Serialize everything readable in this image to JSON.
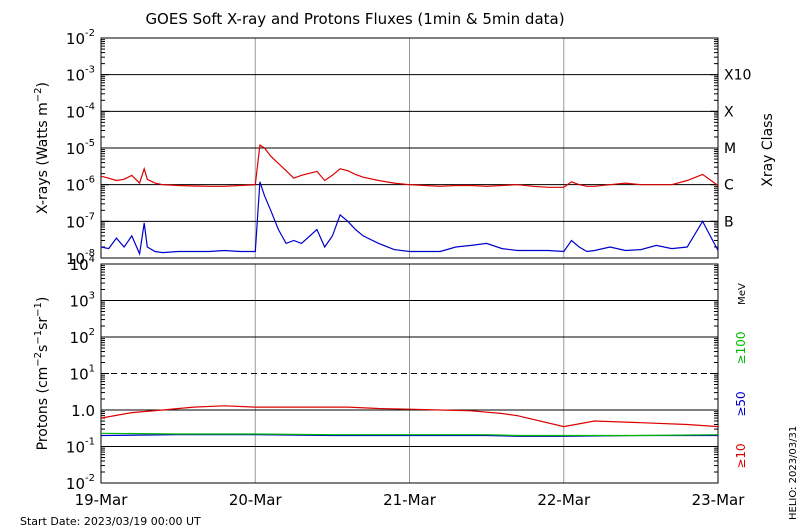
{
  "title": "GOES Soft X-ray and Protons Fluxes   (1min & 5min data)",
  "start_date_label": "Start Date: 2023/03/19 00:00 UT",
  "credit": "HELIO: 2023/03/31",
  "colors": {
    "red": "#dd0000",
    "blue": "#0000cc",
    "green": "#00bb00",
    "grid": "#000000",
    "day_line": "#999999"
  },
  "chart_data": [
    {
      "type": "line",
      "title": "GOES Soft X-ray and Protons Fluxes   (1min & 5min data)",
      "ylabel": "X-rays (Watts m^-2)",
      "y_scale": "log",
      "ylim": [
        1e-08,
        0.01
      ],
      "x": [
        "19-Mar",
        "20-Mar",
        "21-Mar",
        "22-Mar",
        "23-Mar"
      ],
      "y_ticks": [
        {
          "base": "10",
          "exp": "-8"
        },
        {
          "base": "10",
          "exp": "-7"
        },
        {
          "base": "10",
          "exp": "-6"
        },
        {
          "base": "10",
          "exp": "-5"
        },
        {
          "base": "10",
          "exp": "-4"
        },
        {
          "base": "10",
          "exp": "-3"
        },
        {
          "base": "10",
          "exp": "-2"
        }
      ],
      "right_axis_label": "Xray Class",
      "classes": [
        {
          "label": "B",
          "value": 1e-07
        },
        {
          "label": "C",
          "value": 1e-06
        },
        {
          "label": "M",
          "value": 1e-05
        },
        {
          "label": "X",
          "value": 0.0001
        },
        {
          "label": "X10",
          "value": 0.001
        }
      ],
      "series": [
        {
          "color": "red",
          "x": [
            19.0,
            19.05,
            19.1,
            19.15,
            19.2,
            19.25,
            19.28,
            19.3,
            19.35,
            19.4,
            19.5,
            19.6,
            19.7,
            19.8,
            19.9,
            20.0,
            20.03,
            20.06,
            20.1,
            20.15,
            20.2,
            20.25,
            20.3,
            20.4,
            20.45,
            20.5,
            20.55,
            20.6,
            20.65,
            20.7,
            20.8,
            20.9,
            21.0,
            21.1,
            21.2,
            21.3,
            21.4,
            21.5,
            21.6,
            21.7,
            21.8,
            21.9,
            22.0,
            22.05,
            22.1,
            22.15,
            22.2,
            22.3,
            22.4,
            22.5,
            22.6,
            22.7,
            22.8,
            22.9,
            23.0
          ],
          "y": [
            1.7e-06,
            1.5e-06,
            1.3e-06,
            1.4e-06,
            1.8e-06,
            1.1e-06,
            2.7e-06,
            1.4e-06,
            1.1e-06,
            1e-06,
            9.5e-07,
            9.2e-07,
            9e-07,
            9e-07,
            9.5e-07,
            1e-06,
            1.2e-05,
            1e-05,
            6e-06,
            3.8e-06,
            2.4e-06,
            1.5e-06,
            1.8e-06,
            2.3e-06,
            1.3e-06,
            1.8e-06,
            2.7e-06,
            2.4e-06,
            1.9e-06,
            1.6e-06,
            1.3e-06,
            1.1e-06,
            1e-06,
            9.5e-07,
            9e-07,
            9.5e-07,
            9.5e-07,
            9e-07,
            9.5e-07,
            1e-06,
            9e-07,
            8.5e-07,
            8.5e-07,
            1.2e-06,
            1e-06,
            9e-07,
            9e-07,
            1e-06,
            1.1e-06,
            1e-06,
            1e-06,
            1e-06,
            1.3e-06,
            1.9e-06,
            9.5e-07
          ]
        },
        {
          "color": "blue",
          "x": [
            19.0,
            19.05,
            19.1,
            19.15,
            19.2,
            19.25,
            19.28,
            19.3,
            19.35,
            19.4,
            19.5,
            19.6,
            19.7,
            19.8,
            19.9,
            20.0,
            20.03,
            20.06,
            20.1,
            20.15,
            20.2,
            20.25,
            20.3,
            20.4,
            20.45,
            20.5,
            20.55,
            20.6,
            20.65,
            20.7,
            20.8,
            20.9,
            21.0,
            21.1,
            21.2,
            21.3,
            21.4,
            21.5,
            21.6,
            21.7,
            21.8,
            21.9,
            22.0,
            22.05,
            22.1,
            22.15,
            22.2,
            22.3,
            22.4,
            22.5,
            22.6,
            22.7,
            22.8,
            22.9,
            23.0
          ],
          "y": [
            2e-08,
            1.8e-08,
            3.5e-08,
            2e-08,
            4e-08,
            1.3e-08,
            9e-08,
            2e-08,
            1.5e-08,
            1.4e-08,
            1.5e-08,
            1.5e-08,
            1.5e-08,
            1.6e-08,
            1.5e-08,
            1.5e-08,
            1.2e-06,
            5e-07,
            2e-07,
            6e-08,
            2.5e-08,
            3e-08,
            2.5e-08,
            6e-08,
            2e-08,
            4e-08,
            1.5e-07,
            1e-07,
            6e-08,
            4e-08,
            2.5e-08,
            1.7e-08,
            1.5e-08,
            1.5e-08,
            1.5e-08,
            2e-08,
            2.2e-08,
            2.5e-08,
            1.8e-08,
            1.6e-08,
            1.6e-08,
            1.6e-08,
            1.5e-08,
            3e-08,
            2e-08,
            1.5e-08,
            1.6e-08,
            2e-08,
            1.6e-08,
            1.7e-08,
            2.2e-08,
            1.8e-08,
            2e-08,
            1e-07,
            1.6e-08
          ]
        }
      ]
    },
    {
      "type": "line",
      "ylabel": "Protons (cm^-2 s^-1 sr^-1)",
      "y_scale": "log",
      "ylim": [
        0.01,
        10000.0
      ],
      "x": [
        "19-Mar",
        "20-Mar",
        "21-Mar",
        "22-Mar",
        "23-Mar"
      ],
      "y_ticks": [
        {
          "base": "10",
          "exp": "-2"
        },
        {
          "base": "10",
          "exp": "-1"
        },
        {
          "base": "1.0",
          "exp": ""
        },
        {
          "base": "10",
          "exp": "1"
        },
        {
          "base": "10",
          "exp": "2"
        },
        {
          "base": "10",
          "exp": "3"
        },
        {
          "base": "10",
          "exp": "4"
        }
      ],
      "threshold": 10,
      "right_axis_unit": "MeV",
      "series": [
        {
          "name": "≥10",
          "color": "red",
          "x": [
            19.0,
            19.2,
            19.4,
            19.6,
            19.8,
            20.0,
            20.2,
            20.4,
            20.6,
            20.8,
            21.0,
            21.2,
            21.4,
            21.6,
            21.7,
            22.0,
            22.2,
            22.5,
            22.8,
            23.0
          ],
          "y": [
            0.6,
            0.85,
            1.0,
            1.2,
            1.3,
            1.2,
            1.2,
            1.2,
            1.2,
            1.1,
            1.05,
            1.0,
            0.95,
            0.8,
            0.7,
            0.35,
            0.5,
            0.45,
            0.4,
            0.35
          ]
        },
        {
          "name": "≥50",
          "color": "blue",
          "x": [
            19.0,
            19.5,
            20.0,
            20.5,
            21.0,
            21.5,
            21.7,
            22.0,
            22.5,
            23.0
          ],
          "y": [
            0.2,
            0.21,
            0.21,
            0.2,
            0.2,
            0.2,
            0.19,
            0.19,
            0.2,
            0.2
          ]
        },
        {
          "name": "≥100",
          "color": "green",
          "x": [
            19.0,
            19.5,
            20.0,
            20.5,
            21.0,
            21.5,
            21.7,
            22.0,
            22.5,
            23.0
          ],
          "y": [
            0.23,
            0.22,
            0.22,
            0.21,
            0.21,
            0.21,
            0.2,
            0.2,
            0.2,
            0.21
          ]
        }
      ]
    }
  ]
}
